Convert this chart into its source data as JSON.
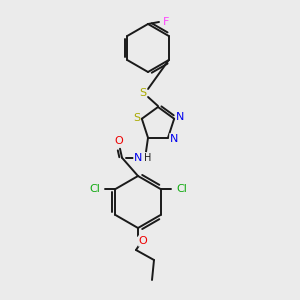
{
  "background_color": "#ebebeb",
  "bond_color": "#1a1a1a",
  "bond_width": 1.4,
  "figsize": [
    3.0,
    3.0
  ],
  "dpi": 100,
  "colors": {
    "F": "#ff44ff",
    "S": "#aaaa00",
    "N": "#0000ee",
    "O": "#ee0000",
    "Cl": "#11aa11",
    "C": "#1a1a1a",
    "H": "#1a1a1a"
  },
  "font_size": 7.5
}
